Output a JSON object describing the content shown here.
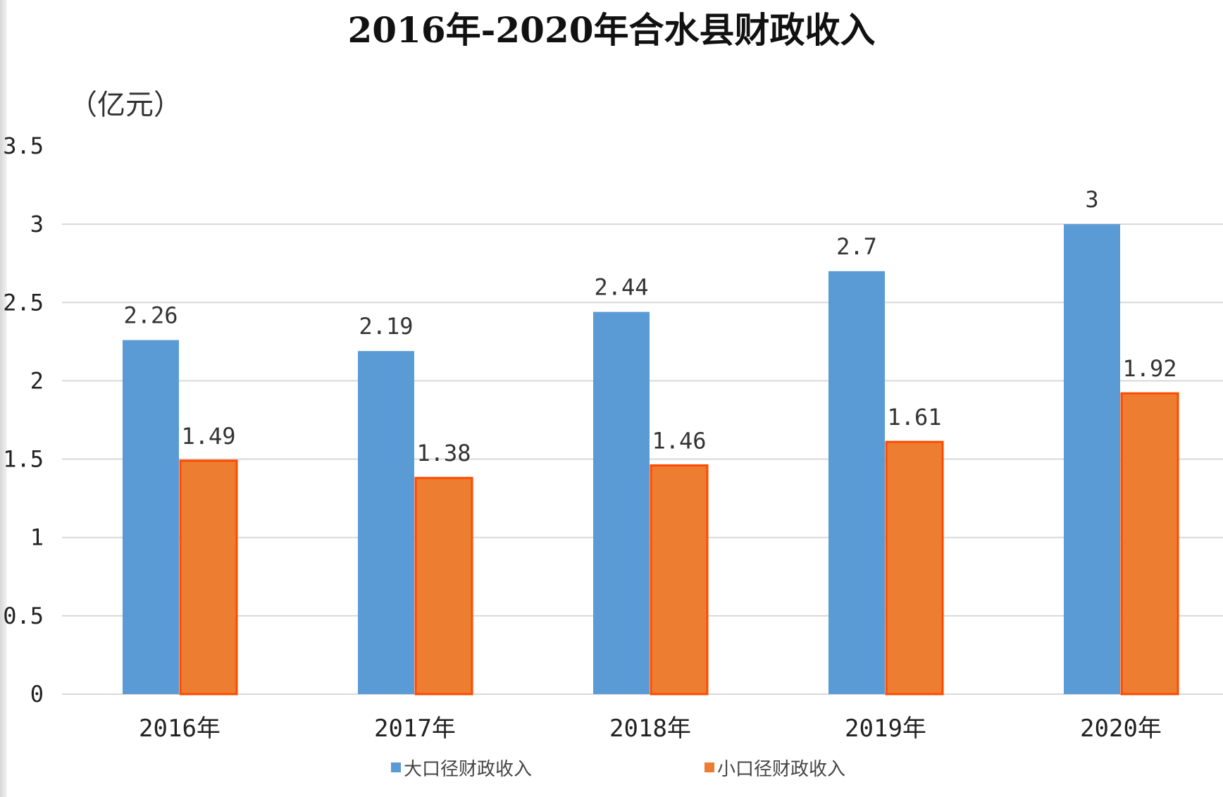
{
  "chart_data": {
    "type": "bar",
    "title": "2016年-2020年合水县财政收入",
    "unit_label": "（亿元）",
    "categories": [
      "2016年",
      "2017年",
      "2018年",
      "2019年",
      "2020年"
    ],
    "series": [
      {
        "name": "大口径财政收入",
        "values": [
          2.26,
          2.19,
          2.44,
          2.7,
          3
        ],
        "labels": [
          "2.26",
          "2.19",
          "2.44",
          "2.7",
          "3"
        ],
        "color": "#5B9BD5"
      },
      {
        "name": "小口径财政收入",
        "values": [
          1.49,
          1.38,
          1.46,
          1.61,
          1.92
        ],
        "labels": [
          "1.49",
          "1.38",
          "1.46",
          "1.61",
          "1.92"
        ],
        "color": "#ED7D31",
        "stroke": "#FF4A00"
      }
    ],
    "ylim": [
      0,
      3.5
    ],
    "yticks": [
      "0",
      "0.5",
      "1",
      "1.5",
      "2",
      "2.5",
      "3",
      "3.5"
    ],
    "grid": true,
    "legend_position": "bottom",
    "gridline_color": "#d9d9d9"
  }
}
